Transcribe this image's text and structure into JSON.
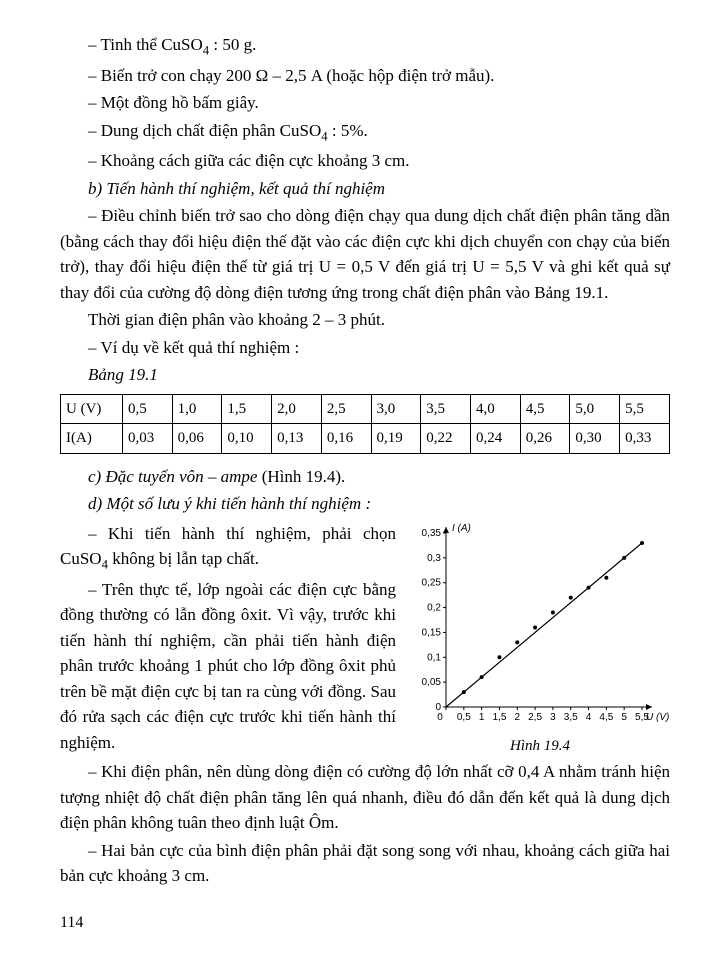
{
  "lines": {
    "l1a": "– Tinh thể CuSO",
    "l1b": " : 50 g.",
    "l2": "– Biến trở con chạy 200 Ω – 2,5 A (hoặc hộp điện trở mẫu).",
    "l3": "– Một đồng hồ bấm giây.",
    "l4a": "– Dung dịch chất điện phân CuSO",
    "l4b": " : 5%.",
    "l5": "– Khoảng cách giữa các điện cực khoảng 3 cm.",
    "l6": "b) Tiến hành thí nghiệm, kết quả thí nghiệm",
    "l7": "– Điều chỉnh biến trở sao cho dòng điện chạy qua dung dịch chất điện phân tăng dần (bằng cách thay đổi hiệu điện thế đặt vào các điện cực khi dịch chuyển con chạy của biến trở), thay đổi hiệu điện thế từ giá trị U = 0,5 V đến giá trị U = 5,5 V và ghi kết quả sự thay đổi của cường độ dòng điện tương ứng trong chất điện phân vào Bảng 19.1.",
    "l8": "Thời gian điện phân vào khoảng 2 – 3 phút.",
    "l9": "– Ví dụ về kết quả thí nghiệm :",
    "l10": "Bảng 19.1",
    "l11": "c) Đặc tuyến vôn – ampe",
    "l11b": " (Hình 19.4).",
    "l12": "d) Một số lưu ý khi tiến hành thí nghiệm :",
    "l13a": "– Khi tiến hành thí nghiệm, phải chọn CuSO",
    "l13b": " không bị lẫn tạp chất.",
    "l14": "– Trên thực tế, lớp ngoài các điện cực bằng đồng thường có lẫn đồng ôxit. Vì vậy, trước khi tiến hành thí nghiệm, cần phải tiến hành điện phân trước khoảng 1 phút cho lớp đồng ôxit phủ trên bề mặt điện cực bị tan ra cùng với đồng. Sau đó rửa sạch các điện cực trước khi tiến hành thí nghiệm.",
    "l15": "– Khi điện phân, nên dùng dòng điện có cường độ lớn nhất cỡ 0,4 A nhằm tránh hiện tượng nhiệt độ chất điện phân tăng lên quá nhanh, điều đó dẫn đến kết quả là dung dịch điện phân không tuân theo định luật Ôm.",
    "l16": "– Hai bản cực của bình điện phân phải đặt song song với nhau, khoảng cách giữa hai bản cực khoảng 3 cm."
  },
  "table": {
    "row1_label": "U (V)",
    "row2_label": "I(A)",
    "u_values": [
      "0,5",
      "1,0",
      "1,5",
      "2,0",
      "2,5",
      "3,0",
      "3,5",
      "4,0",
      "4,5",
      "5,0",
      "5,5"
    ],
    "i_values": [
      "0,03",
      "0,06",
      "0,10",
      "0,13",
      "0,16",
      "0,19",
      "0,22",
      "0,24",
      "0,26",
      "0,30",
      "0,33"
    ]
  },
  "chart": {
    "caption": "Hình 19.4",
    "y_label": "I (A)",
    "x_label": "U (V)",
    "y_ticks": [
      "0",
      "0,05",
      "0,1",
      "0,15",
      "0,2",
      "0,25",
      "0,3",
      "0,35"
    ],
    "x_ticks": [
      "0",
      "0,5",
      "1",
      "1,5",
      "2",
      "2,5",
      "3",
      "3,5",
      "4",
      "4,5",
      "5",
      "5,5"
    ],
    "y_max": 0.35,
    "x_max": 5.5,
    "points": [
      [
        0.5,
        0.03
      ],
      [
        1.0,
        0.06
      ],
      [
        1.5,
        0.1
      ],
      [
        2.0,
        0.13
      ],
      [
        2.5,
        0.16
      ],
      [
        3.0,
        0.19
      ],
      [
        3.5,
        0.22
      ],
      [
        4.0,
        0.24
      ],
      [
        4.5,
        0.26
      ],
      [
        5.0,
        0.3
      ],
      [
        5.5,
        0.33
      ]
    ],
    "line_color": "#000000",
    "point_color": "#000000",
    "axis_color": "#000000",
    "font_size": 10,
    "point_radius": 2
  },
  "page_number": "114",
  "sub4": "4"
}
